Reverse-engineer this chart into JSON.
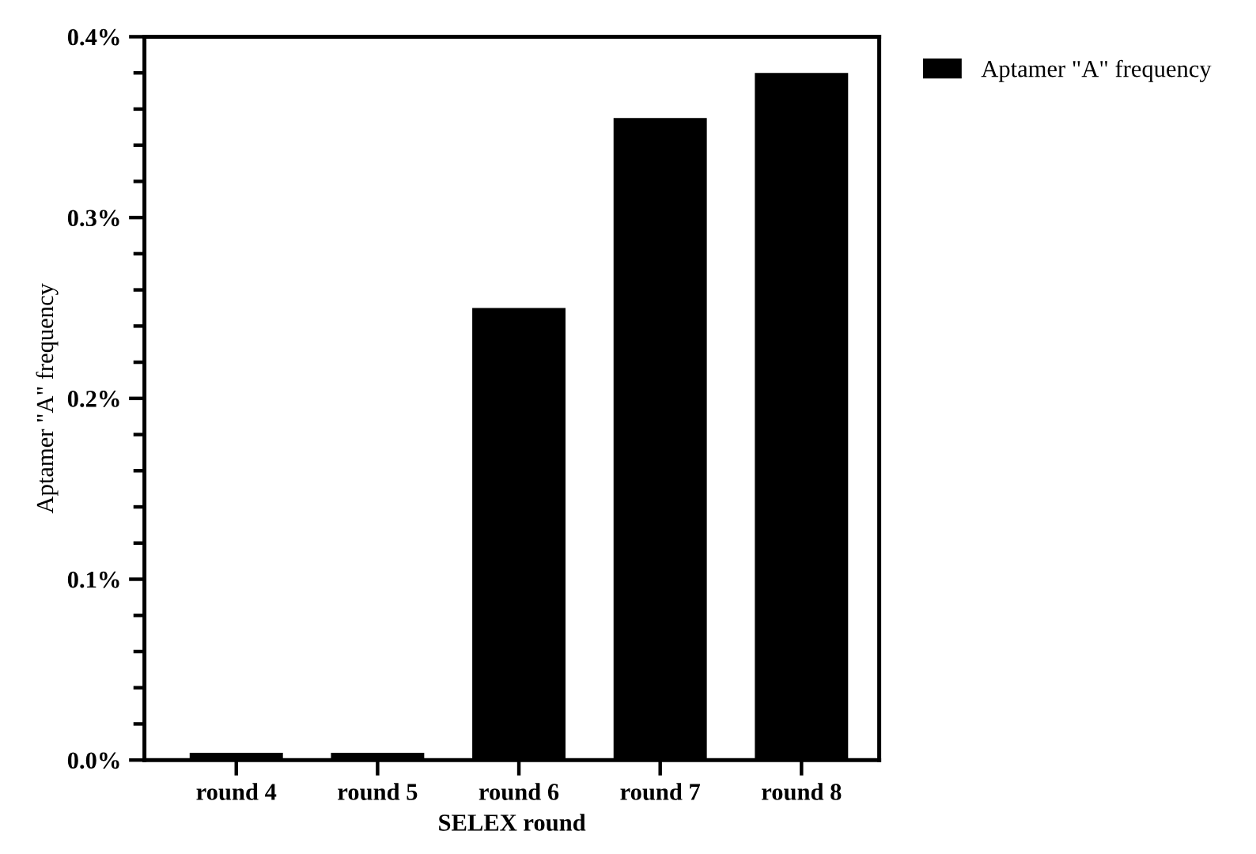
{
  "chart_data": {
    "type": "bar",
    "xlabel": "SELEX round",
    "ylabel": "Aptamer \"A\" frequency",
    "categories": [
      "round 4",
      "round 5",
      "round 6",
      "round 7",
      "round 8"
    ],
    "series": [
      {
        "name": "Aptamer \"A\" frequency",
        "color": "#000000",
        "values": [
          0.004,
          0.004,
          0.25,
          0.355,
          0.38
        ]
      }
    ],
    "ylim": [
      0,
      0.4
    ],
    "yticks": [
      {
        "value": 0,
        "label": "0.0%"
      },
      {
        "value": 0.1,
        "label": "0.1%"
      },
      {
        "value": 0.2,
        "label": "0.2%"
      },
      {
        "value": 0.3,
        "label": "0.3%"
      },
      {
        "value": 0.4,
        "label": "0.4%"
      }
    ],
    "grid": false,
    "legend": "top right"
  }
}
